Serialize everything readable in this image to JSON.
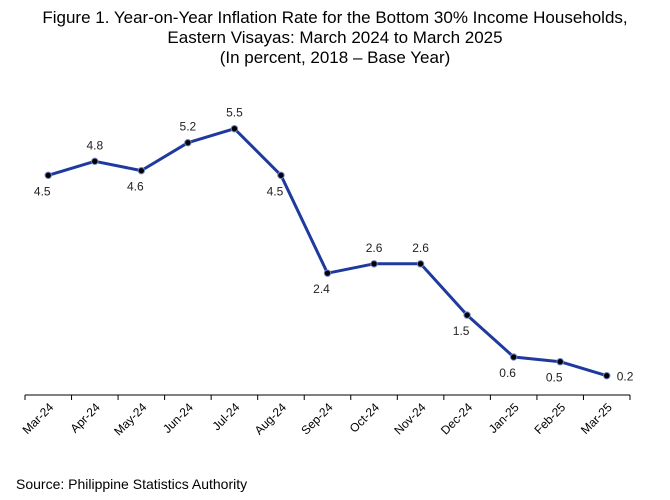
{
  "title_lines": [
    "Figure 1. Year-on-Year Inflation Rate for the Bottom 30% Income Households,",
    "Eastern Visayas: March 2024 to March 2025",
    "(In percent, 2018 – Base Year)"
  ],
  "source": "Source: Philippine Statistics Authority",
  "chart_data": {
    "type": "line",
    "title": "Figure 1. Year-on-Year Inflation Rate for the Bottom 30% Income Households, Eastern Visayas: March 2024 to March 2025 (In percent, 2018 – Base Year)",
    "xlabel": "",
    "ylabel": "",
    "categories": [
      "Mar-24",
      "Apr-24",
      "May-24",
      "Jun-24",
      "Jul-24",
      "Aug-24",
      "Sep-24",
      "Oct-24",
      "Nov-24",
      "Dec-24",
      "Jan-25",
      "Feb-25",
      "Mar-25"
    ],
    "series": [
      {
        "name": "",
        "values": [
          4.5,
          4.8,
          4.6,
          5.2,
          5.5,
          4.5,
          2.4,
          2.6,
          2.6,
          1.5,
          0.6,
          0.5,
          0.2
        ]
      }
    ],
    "data_labels": [
      "4.5",
      "4.8",
      "4.6",
      "5.2",
      "5.5",
      "4.5",
      "2.4",
      "2.6",
      "2.6",
      "1.5",
      "0.6",
      "0.5",
      "0.2"
    ],
    "ylim": [
      0,
      6
    ],
    "grid": false,
    "legend": "none",
    "line_color": "#1f3a9e",
    "marker_color": "#000000"
  }
}
